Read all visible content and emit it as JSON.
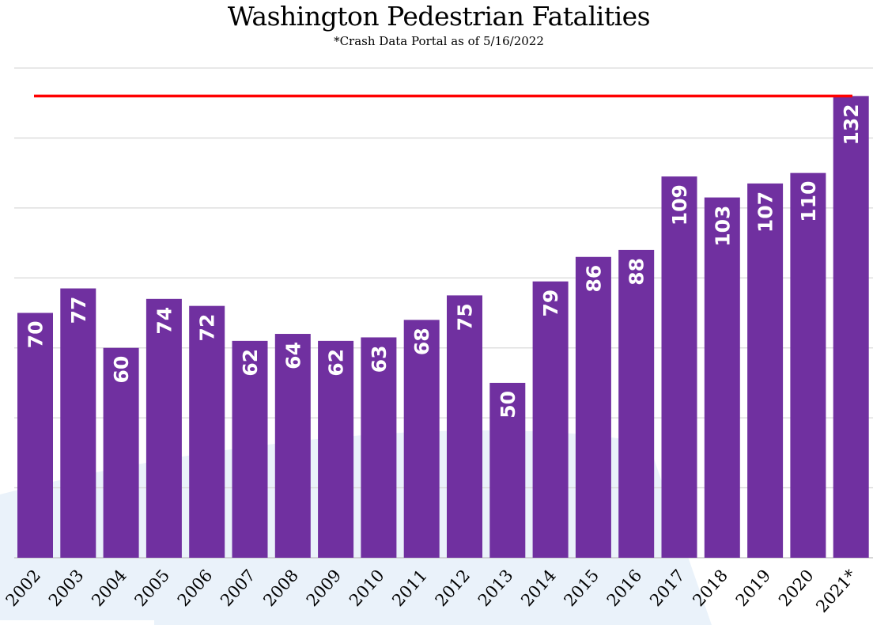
{
  "chart_data": {
    "type": "bar",
    "title": "Washington Pedestrian Fatalities",
    "subtitle": "*Crash Data Portal as of 5/16/2022",
    "xlabel": "",
    "ylabel": "",
    "categories": [
      "2002",
      "2003",
      "2004",
      "2005",
      "2006",
      "2007",
      "2008",
      "2009",
      "2010",
      "2011",
      "2012",
      "2013",
      "2014",
      "2015",
      "2016",
      "2017",
      "2018",
      "2019",
      "2020",
      "2021*"
    ],
    "values": [
      70,
      77,
      60,
      74,
      72,
      62,
      64,
      62,
      63,
      68,
      75,
      50,
      79,
      86,
      88,
      109,
      103,
      107,
      110,
      132
    ],
    "ylim": [
      0,
      140
    ],
    "grid": true,
    "gridlines": [
      0,
      20,
      40,
      60,
      80,
      100,
      120,
      140
    ],
    "reference_line": 132,
    "colors": {
      "bar": "#7030a0",
      "reference_line": "#ff0000",
      "label": "#ffffff",
      "grid": "#d9d9d9"
    }
  }
}
